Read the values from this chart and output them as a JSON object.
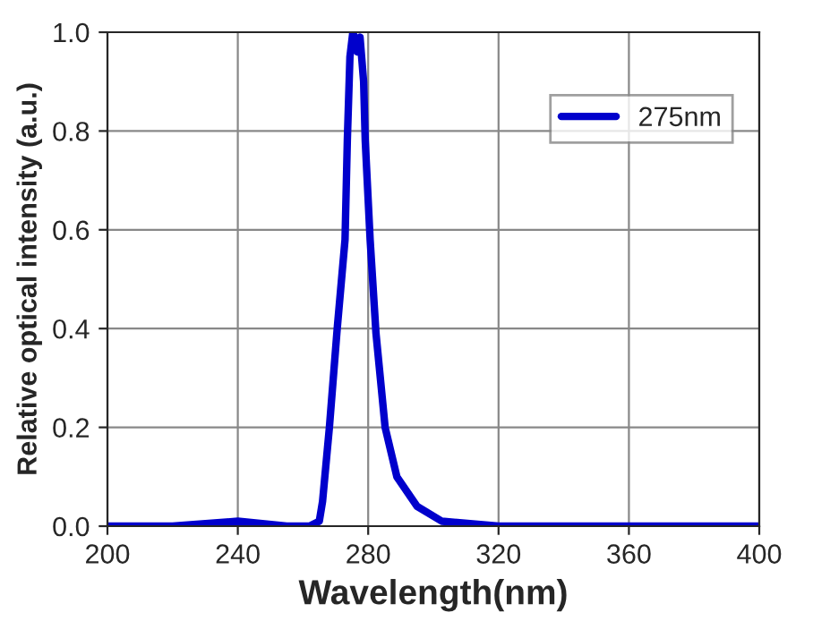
{
  "chart_data": {
    "type": "line",
    "xlabel": "Wavelength(nm)",
    "ylabel": "Relative optical intensity (a.u.)",
    "series": [
      {
        "name": "275nm",
        "color": "#0000cc",
        "x": [
          200,
          220,
          240,
          255,
          262,
          265,
          266,
          268.1,
          270.5,
          272.9,
          273.6,
          274.4,
          275.3,
          276.2,
          276.7,
          277.5,
          278.6,
          279.1,
          280.6,
          282.4,
          285.2,
          288.8,
          295,
          302.6,
          320,
          340,
          360,
          380,
          400
        ],
        "values": [
          0,
          0,
          0.01,
          0,
          0,
          0.01,
          0.05,
          0.2,
          0.4,
          0.58,
          0.78,
          0.95,
          1.0,
          0.98,
          0.96,
          0.99,
          0.9,
          0.78,
          0.58,
          0.39,
          0.2,
          0.1,
          0.04,
          0.01,
          0,
          0,
          0,
          0,
          0
        ]
      }
    ],
    "xlim": [
      200,
      400
    ],
    "xticks": [
      200,
      240,
      280,
      320,
      360,
      400
    ],
    "ylim": [
      0,
      1.0
    ],
    "yticks": [
      {
        "value": 0,
        "label": "0.0"
      },
      {
        "value": 0.2,
        "label": "0.2"
      },
      {
        "value": 0.4,
        "label": "0.4"
      },
      {
        "value": 0.6,
        "label": "0.6"
      },
      {
        "value": 0.8,
        "label": "0.8"
      },
      {
        "value": 1.0,
        "label": "1.0"
      }
    ],
    "grid": true,
    "legend": "top right",
    "line_style": "solid",
    "marker": "none"
  }
}
